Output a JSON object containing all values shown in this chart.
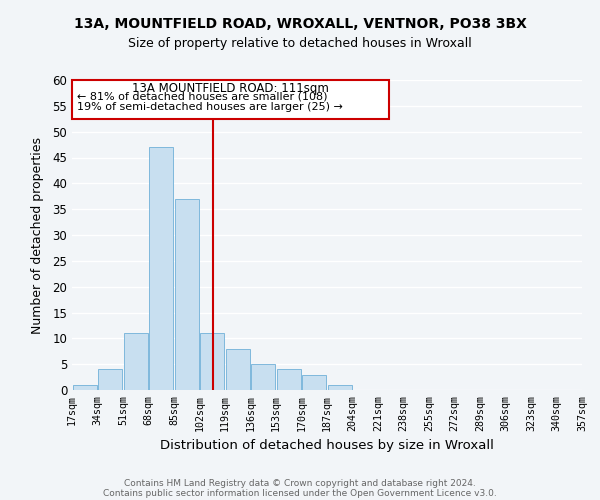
{
  "title": "13A, MOUNTFIELD ROAD, WROXALL, VENTNOR, PO38 3BX",
  "subtitle": "Size of property relative to detached houses in Wroxall",
  "xlabel": "Distribution of detached houses by size in Wroxall",
  "ylabel": "Number of detached properties",
  "bar_edges": [
    17,
    34,
    51,
    68,
    85,
    102,
    119,
    136,
    153,
    170,
    187,
    204,
    221,
    238,
    255,
    272,
    289,
    306,
    323,
    340,
    357
  ],
  "bar_heights": [
    1,
    4,
    11,
    47,
    37,
    11,
    8,
    5,
    4,
    3,
    1,
    0,
    0,
    0,
    0,
    0,
    0,
    0,
    0,
    0
  ],
  "bar_color": "#c8dff0",
  "bar_edge_color": "#7fb8dc",
  "tick_labels": [
    "17sqm",
    "34sqm",
    "51sqm",
    "68sqm",
    "85sqm",
    "102sqm",
    "119sqm",
    "136sqm",
    "153sqm",
    "170sqm",
    "187sqm",
    "204sqm",
    "221sqm",
    "238sqm",
    "255sqm",
    "272sqm",
    "289sqm",
    "306sqm",
    "323sqm",
    "340sqm",
    "357sqm"
  ],
  "vline_x": 111,
  "vline_color": "#cc0000",
  "ylim": [
    0,
    60
  ],
  "yticks": [
    0,
    5,
    10,
    15,
    20,
    25,
    30,
    35,
    40,
    45,
    50,
    55,
    60
  ],
  "annotation_title": "13A MOUNTFIELD ROAD: 111sqm",
  "annotation_line1": "← 81% of detached houses are smaller (108)",
  "annotation_line2": "19% of semi-detached houses are larger (25) →",
  "footer_line1": "Contains HM Land Registry data © Crown copyright and database right 2024.",
  "footer_line2": "Contains public sector information licensed under the Open Government Licence v3.0.",
  "background_color": "#f2f5f8",
  "grid_color": "#ffffff",
  "box_edge_color": "#cc0000"
}
